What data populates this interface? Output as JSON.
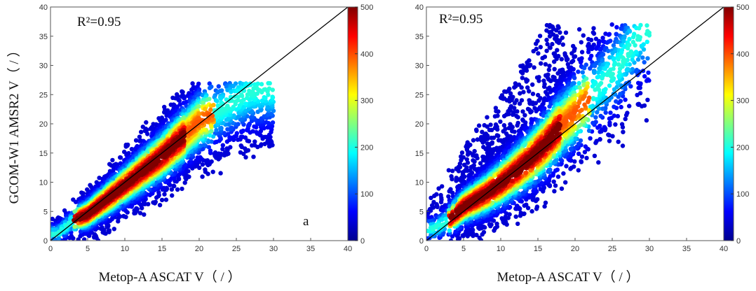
{
  "chart_data": [
    {
      "type": "scatter",
      "xlabel": "Metop-A ASCAT V（ / ）",
      "ylabel": "GCOM-W1 AMSR2 V（ / ）",
      "xlim": [
        0,
        40
      ],
      "ylim": [
        0,
        40
      ],
      "xticks": [
        0,
        5,
        10,
        15,
        20,
        25,
        30,
        35,
        40
      ],
      "yticks": [
        0,
        5,
        10,
        15,
        20,
        25,
        30,
        35,
        40
      ],
      "annotation": "R²=0.95",
      "panel_label": "a",
      "reference_line": [
        [
          0,
          0
        ],
        [
          40,
          40
        ]
      ],
      "colorbar": {
        "min": 0,
        "max": 500,
        "ticks": [
          0,
          100,
          200,
          300,
          400,
          500
        ]
      },
      "density_ridge": [
        [
          1,
          1.2
        ],
        [
          3,
          3.5
        ],
        [
          5,
          4.5
        ],
        [
          8,
          7.5
        ],
        [
          10,
          9.5
        ],
        [
          12,
          11.5
        ],
        [
          15,
          14.5
        ],
        [
          18,
          18
        ],
        [
          20,
          20.5
        ],
        [
          23,
          22.5
        ],
        [
          25,
          24
        ],
        [
          27,
          25.5
        ],
        [
          29,
          26
        ]
      ],
      "scatter_extent": {
        "x": [
          0,
          30
        ],
        "y": [
          0,
          27
        ]
      }
    },
    {
      "type": "scatter",
      "xlabel": "Metop-A ASCAT V（ / ）",
      "ylabel": "",
      "xlim": [
        0,
        40
      ],
      "ylim": [
        0,
        40
      ],
      "xticks": [
        0,
        5,
        10,
        15,
        20,
        25,
        30,
        35,
        40
      ],
      "yticks": [
        0,
        5,
        10,
        15,
        20,
        25,
        30,
        35,
        40
      ],
      "annotation": "R²=0.95",
      "panel_label": "",
      "reference_line": [
        [
          0,
          0
        ],
        [
          40,
          40
        ]
      ],
      "colorbar": {
        "min": 0,
        "max": 500,
        "ticks": [
          0,
          100,
          200,
          300,
          400,
          500
        ]
      },
      "density_ridge": [
        [
          1,
          2
        ],
        [
          3,
          3.5
        ],
        [
          5,
          5.8
        ],
        [
          8,
          8
        ],
        [
          10,
          9.8
        ],
        [
          12,
          11.8
        ],
        [
          14,
          14
        ],
        [
          16,
          16.5
        ],
        [
          18,
          19.5
        ],
        [
          20,
          22
        ],
        [
          23,
          26
        ],
        [
          26,
          30
        ],
        [
          29,
          36
        ]
      ],
      "scatter_extent": {
        "x": [
          0,
          30
        ],
        "y": [
          0,
          37
        ]
      }
    }
  ]
}
